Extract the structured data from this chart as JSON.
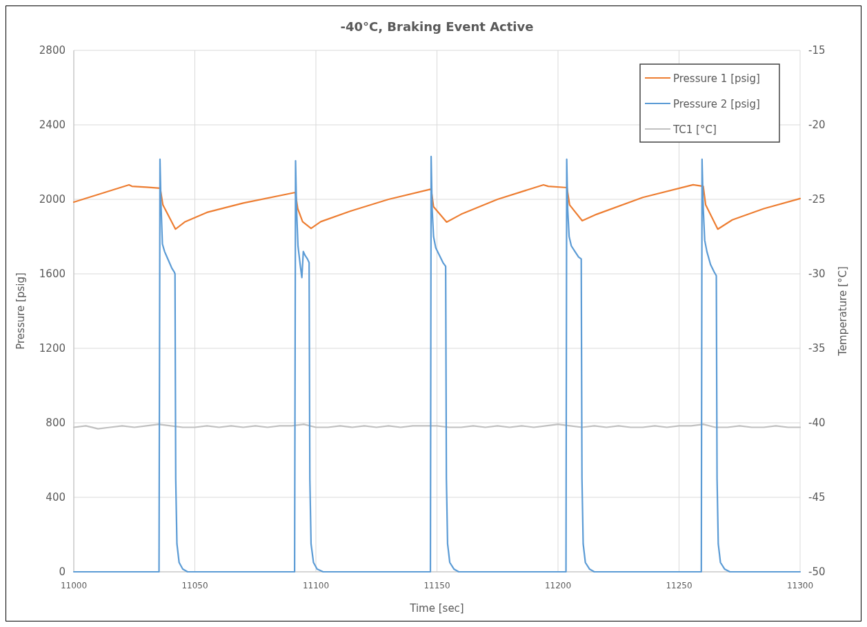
{
  "chart_data": {
    "type": "line",
    "title": "-40°C, Braking Event Active",
    "xlabel": "Time [sec]",
    "ylabel": "Pressure [psig]",
    "y2label": "Temperature [°C]",
    "xlim": [
      11000,
      11300
    ],
    "xticks": [
      11000,
      11050,
      11100,
      11150,
      11200,
      11250,
      11300
    ],
    "ylim": [
      0,
      2800
    ],
    "yticks": [
      0,
      400,
      800,
      1200,
      1600,
      2000,
      2400,
      2800
    ],
    "y2lim": [
      -50,
      -15
    ],
    "y2ticks": [
      -50,
      -45,
      -40,
      -35,
      -30,
      -25,
      -20,
      -15
    ],
    "grid": true,
    "legend": "top right",
    "marker": "none",
    "line_style": "solid",
    "series": [
      {
        "name": "Pressure 1 [psig]",
        "color": "#ed7d31",
        "x": [
          11000,
          11022.8,
          11024,
          11030,
          11035.7,
          11036.8,
          11042,
          11046,
          11055,
          11070,
          11091.5,
          11092.5,
          11094.5,
          11098,
          11102,
          11115,
          11130,
          11147.6,
          11148.6,
          11154,
          11160,
          11175,
          11194,
          11196,
          11203.7,
          11204.8,
          11210,
          11216,
          11235,
          11255.8,
          11260,
          11261,
          11266,
          11272,
          11285,
          11300
        ],
        "values": [
          1985,
          2078,
          2070,
          2065,
          2060,
          1970,
          1840,
          1880,
          1930,
          1980,
          2037,
          1950,
          1880,
          1844,
          1880,
          1940,
          2000,
          2055,
          1960,
          1878,
          1920,
          2000,
          2078,
          2070,
          2063,
          1970,
          1885,
          1920,
          2010,
          2078,
          2070,
          1970,
          1840,
          1890,
          1950,
          2004
        ]
      },
      {
        "name": "Pressure 2 [psig]",
        "color": "#5b9bd5",
        "x": [
          11000,
          11035.2,
          11035.6,
          11036,
          11036.6,
          11037.5,
          11038.5,
          11039.5,
          11040.5,
          11041.5,
          11041.8,
          11042.1,
          11042.6,
          11043.5,
          11045,
          11047,
          11091.2,
          11091.6,
          11092,
          11092.6,
          11093.5,
          11094.2,
          11094.8,
          11095.5,
          11096.5,
          11097.2,
          11097.5,
          11098,
          11099,
          11100.5,
          11103,
          11147.3,
          11147.6,
          11148,
          11148.6,
          11149.5,
          11151,
          11152.5,
          11153.6,
          11153.9,
          11154.4,
          11155.3,
          11157,
          11159,
          11203.3,
          11203.6,
          11204,
          11204.6,
          11205.5,
          11207,
          11208.5,
          11209.6,
          11209.9,
          11210.4,
          11211.3,
          11213,
          11215,
          11259.2,
          11259.5,
          11260,
          11260.6,
          11261.5,
          11263,
          11264.5,
          11265.4,
          11265.7,
          11266.2,
          11267.1,
          11268.8,
          11271,
          11300
        ],
        "values": [
          0,
          0,
          2215,
          1980,
          1760,
          1720,
          1690,
          1660,
          1630,
          1610,
          1600,
          500,
          150,
          50,
          15,
          0,
          0,
          2207,
          1950,
          1750,
          1650,
          1580,
          1720,
          1700,
          1680,
          1660,
          500,
          150,
          50,
          15,
          0,
          0,
          2230,
          1950,
          1800,
          1740,
          1700,
          1660,
          1640,
          500,
          150,
          50,
          15,
          0,
          0,
          2215,
          1950,
          1800,
          1750,
          1720,
          1690,
          1680,
          500,
          150,
          50,
          15,
          0,
          0,
          2215,
          1950,
          1780,
          1720,
          1650,
          1610,
          1590,
          500,
          150,
          50,
          15,
          0,
          0
        ]
      },
      {
        "name": "TC1 [°C]",
        "color": "#bfbfbf",
        "axis": "y2",
        "x": [
          11000,
          11005,
          11010,
          11015,
          11020,
          11025,
          11030,
          11035,
          11040,
          11045,
          11050,
          11055,
          11060,
          11065,
          11070,
          11075,
          11080,
          11085,
          11090,
          11095,
          11100,
          11105,
          11110,
          11115,
          11120,
          11125,
          11130,
          11135,
          11140,
          11145,
          11150,
          11155,
          11160,
          11165,
          11170,
          11175,
          11180,
          11185,
          11190,
          11195,
          11200,
          11205,
          11210,
          11215,
          11220,
          11225,
          11230,
          11235,
          11240,
          11245,
          11250,
          11255,
          11260,
          11265,
          11270,
          11275,
          11280,
          11285,
          11290,
          11295,
          11300
        ],
        "values": [
          -40.3,
          -40.2,
          -40.4,
          -40.3,
          -40.2,
          -40.3,
          -40.2,
          -40.1,
          -40.2,
          -40.3,
          -40.3,
          -40.2,
          -40.3,
          -40.2,
          -40.3,
          -40.2,
          -40.3,
          -40.2,
          -40.2,
          -40.1,
          -40.3,
          -40.3,
          -40.2,
          -40.3,
          -40.2,
          -40.3,
          -40.2,
          -40.3,
          -40.2,
          -40.2,
          -40.2,
          -40.3,
          -40.3,
          -40.2,
          -40.3,
          -40.2,
          -40.3,
          -40.2,
          -40.3,
          -40.2,
          -40.1,
          -40.2,
          -40.3,
          -40.2,
          -40.3,
          -40.2,
          -40.3,
          -40.3,
          -40.2,
          -40.3,
          -40.2,
          -40.2,
          -40.1,
          -40.3,
          -40.3,
          -40.2,
          -40.3,
          -40.3,
          -40.2,
          -40.3,
          -40.3
        ]
      }
    ]
  }
}
